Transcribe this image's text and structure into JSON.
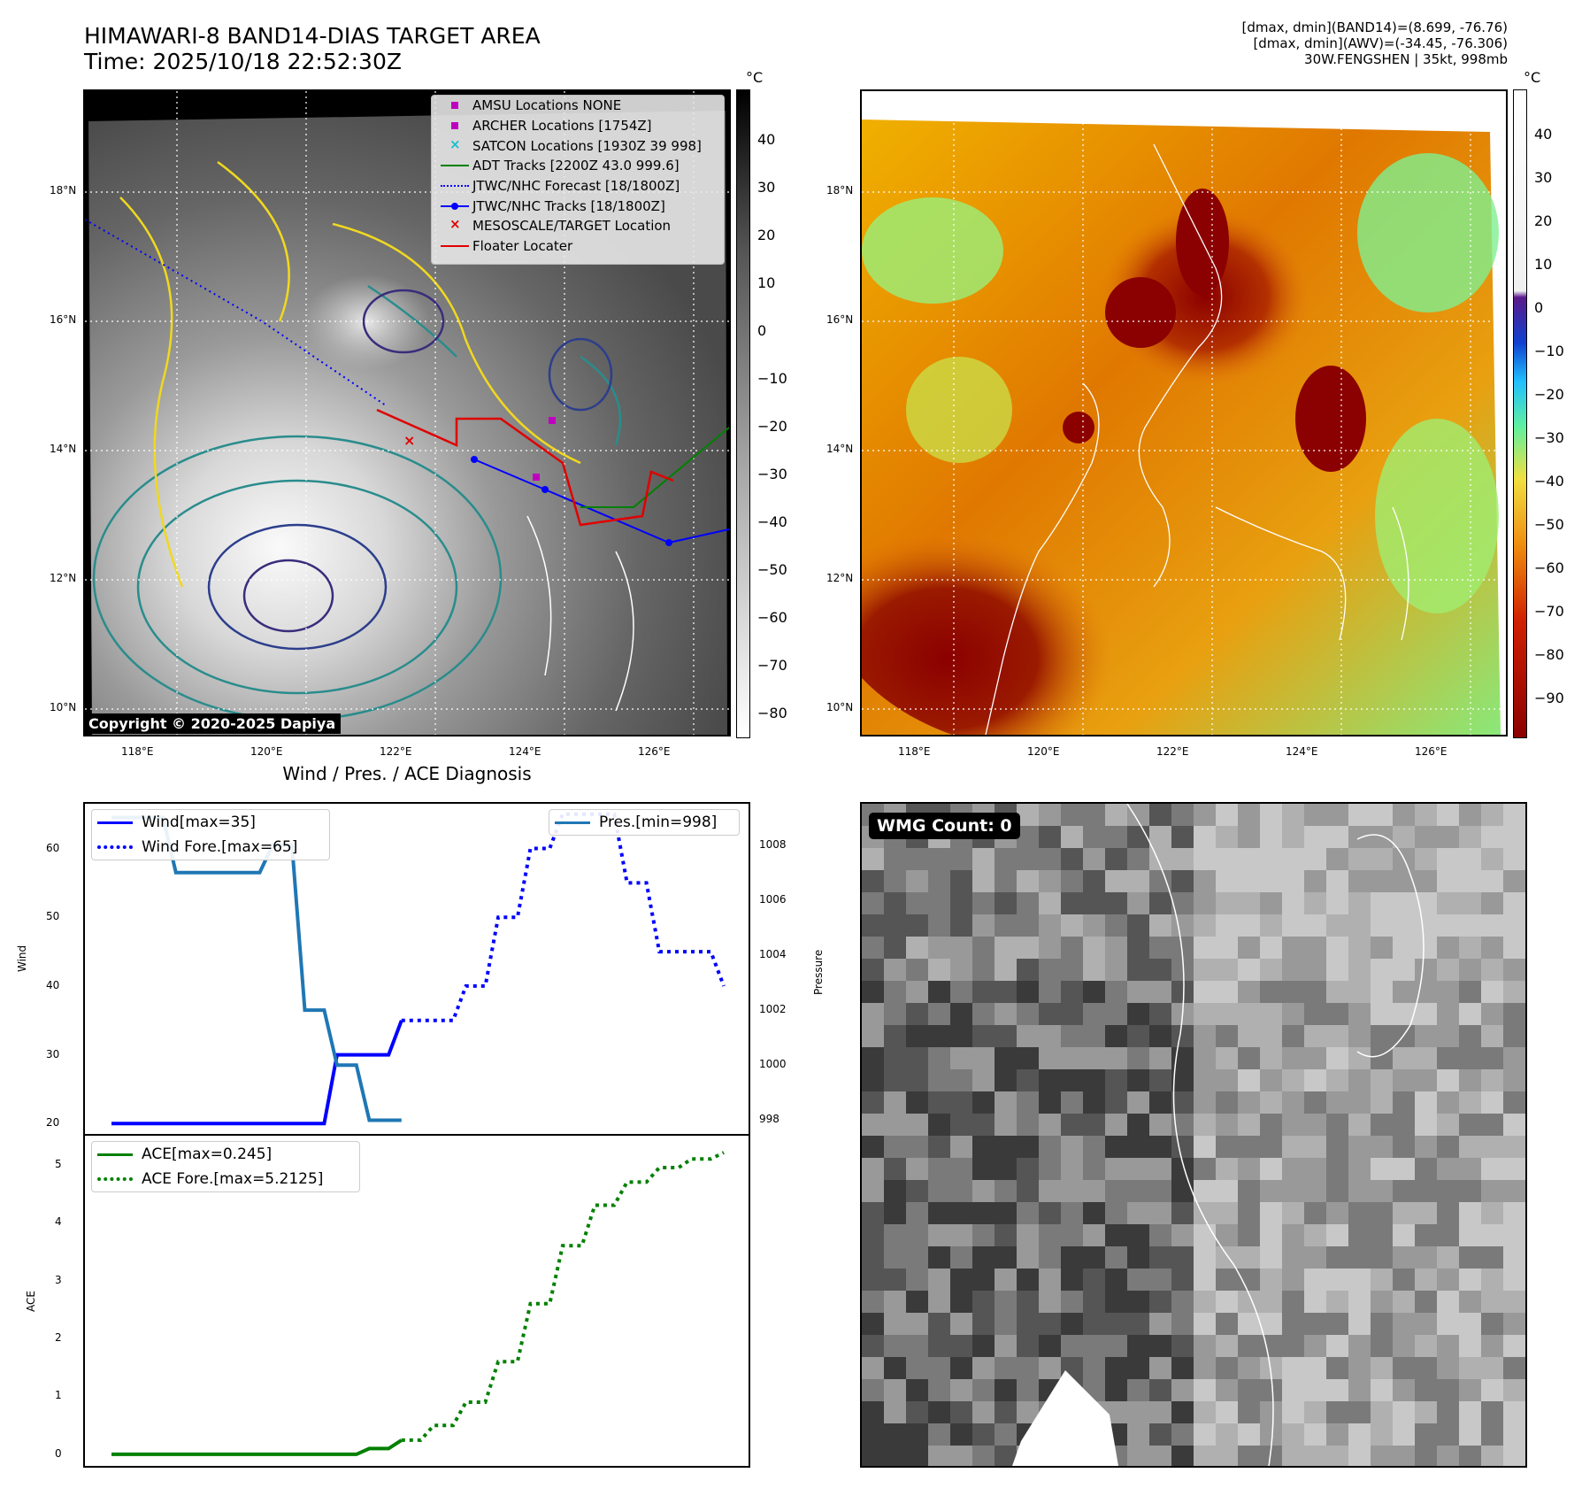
{
  "header": {
    "title_line1": "HIMAWARI-8 BAND14-DIAS TARGET AREA",
    "title_line2": "Time: 2025/10/18 22:52:30Z",
    "info_line1": "[dmax, dmin](BAND14)=(8.699, -76.76)",
    "info_line2": "[dmax, dmin](AWV)=(-34.45, -76.306)",
    "info_line3": "30W.FENGSHEN | 35kt, 998mb"
  },
  "map_axes": {
    "lat_labels": [
      "18°N",
      "16°N",
      "14°N",
      "12°N",
      "10°N"
    ],
    "lon_labels": [
      "118°E",
      "120°E",
      "122°E",
      "124°E",
      "126°E"
    ]
  },
  "ir_panel": {
    "copyright": "Copyright © 2020-2025 Dapiya",
    "colorbar_unit": "°C",
    "colorbar_ticks": [
      "40",
      "30",
      "20",
      "10",
      "0",
      "−10",
      "−20",
      "−30",
      "−40",
      "−50",
      "−60",
      "−70",
      "−80"
    ],
    "legend": [
      {
        "label": "AMSU Locations NONE",
        "symbol": "square",
        "color": "#c000c0"
      },
      {
        "label": "ARCHER Locations [1754Z]",
        "symbol": "square",
        "color": "#c000c0"
      },
      {
        "label": "SATCON Locations [1930Z 39 998]",
        "symbol": "x",
        "color": "#17becf"
      },
      {
        "label": "ADT Tracks [2200Z 43.0 999.6]",
        "symbol": "line",
        "color": "#008000"
      },
      {
        "label": "JTWC/NHC Forecast [18/1800Z]",
        "symbol": "dotted",
        "color": "#0000ff"
      },
      {
        "label": "JTWC/NHC Tracks [18/1800Z]",
        "symbol": "line-dot",
        "color": "#0000ff"
      },
      {
        "label": "MESOSCALE/TARGET Location",
        "symbol": "x",
        "color": "#e00000"
      },
      {
        "label": "Floater Locater",
        "symbol": "line",
        "color": "#e00000"
      }
    ]
  },
  "awv_panel": {
    "colorbar_unit": "°C",
    "colorbar_ticks": [
      "40",
      "30",
      "20",
      "10",
      "0",
      "−10",
      "−20",
      "−30",
      "−40",
      "−50",
      "−60",
      "−70",
      "−80",
      "−90"
    ]
  },
  "wmg_panel": {
    "badge": "WMG Count: 0"
  },
  "diagnosis": {
    "title": "Wind / Pres. / ACE Diagnosis",
    "wind_ylabel": "Wind",
    "pres_ylabel": "Pressure",
    "ace_ylabel": "ACE",
    "wind_legend": [
      "Wind[max=35]",
      "Wind Fore.[max=65]"
    ],
    "pres_legend": [
      "Pres.[min=998]"
    ],
    "ace_legend": [
      "ACE[max=0.245]",
      "ACE Fore.[max=5.2125]"
    ]
  },
  "chart_data": [
    {
      "type": "line",
      "title": "Wind / Pres. / ACE Diagnosis",
      "ylabel": "Wind",
      "ylim": [
        18.5,
        66.5
      ],
      "yticks": [
        20,
        30,
        40,
        50,
        60
      ],
      "x": [
        0,
        1,
        2,
        3,
        4,
        5,
        6,
        7,
        8,
        9,
        10,
        11,
        12,
        13,
        14,
        15,
        16,
        17,
        18,
        19
      ],
      "series": [
        {
          "name": "Wind[max=35]",
          "color": "#0000ff",
          "style": "solid",
          "x": [
            0,
            1,
            2,
            3,
            4,
            5,
            6,
            7,
            8,
            9
          ],
          "values": [
            20,
            20,
            20,
            20,
            20,
            20,
            20,
            30,
            30,
            35
          ]
        },
        {
          "name": "Wind Fore.[max=65]",
          "color": "#0000ff",
          "style": "dotted",
          "x": [
            9,
            10,
            11,
            12,
            13,
            14,
            15,
            16,
            17,
            18,
            19
          ],
          "values": [
            35,
            35,
            40,
            50,
            60,
            65,
            65,
            55,
            45,
            45,
            40
          ]
        }
      ]
    },
    {
      "type": "line",
      "ylabel": "Pressure",
      "ylim": [
        997.5,
        1009.5
      ],
      "yticks": [
        998,
        1000,
        1002,
        1004,
        1006,
        1008
      ],
      "series": [
        {
          "name": "Pres.[min=998]",
          "color": "#1f77b4",
          "style": "solid",
          "x": [
            0,
            1,
            2,
            3,
            4,
            5,
            6,
            7,
            8,
            9
          ],
          "values": [
            1009,
            1009,
            1007,
            1007,
            1007,
            1008,
            1002,
            1000,
            998,
            998
          ]
        }
      ]
    },
    {
      "type": "line",
      "ylabel": "ACE",
      "ylim": [
        -0.2,
        5.5
      ],
      "yticks": [
        0,
        1,
        2,
        3,
        4,
        5
      ],
      "series": [
        {
          "name": "ACE[max=0.245]",
          "color": "#008000",
          "style": "solid",
          "x": [
            0,
            1,
            2,
            3,
            4,
            5,
            6,
            7,
            8,
            9
          ],
          "values": [
            0,
            0,
            0,
            0,
            0,
            0,
            0,
            0,
            0.1,
            0.245
          ]
        },
        {
          "name": "ACE Fore.[max=5.2125]",
          "color": "#008000",
          "style": "dotted",
          "x": [
            9,
            10,
            11,
            12,
            13,
            14,
            15,
            16,
            17,
            18,
            19
          ],
          "values": [
            0.245,
            0.5,
            0.9,
            1.6,
            2.6,
            3.6,
            4.3,
            4.7,
            4.95,
            5.1,
            5.21
          ]
        }
      ]
    }
  ]
}
